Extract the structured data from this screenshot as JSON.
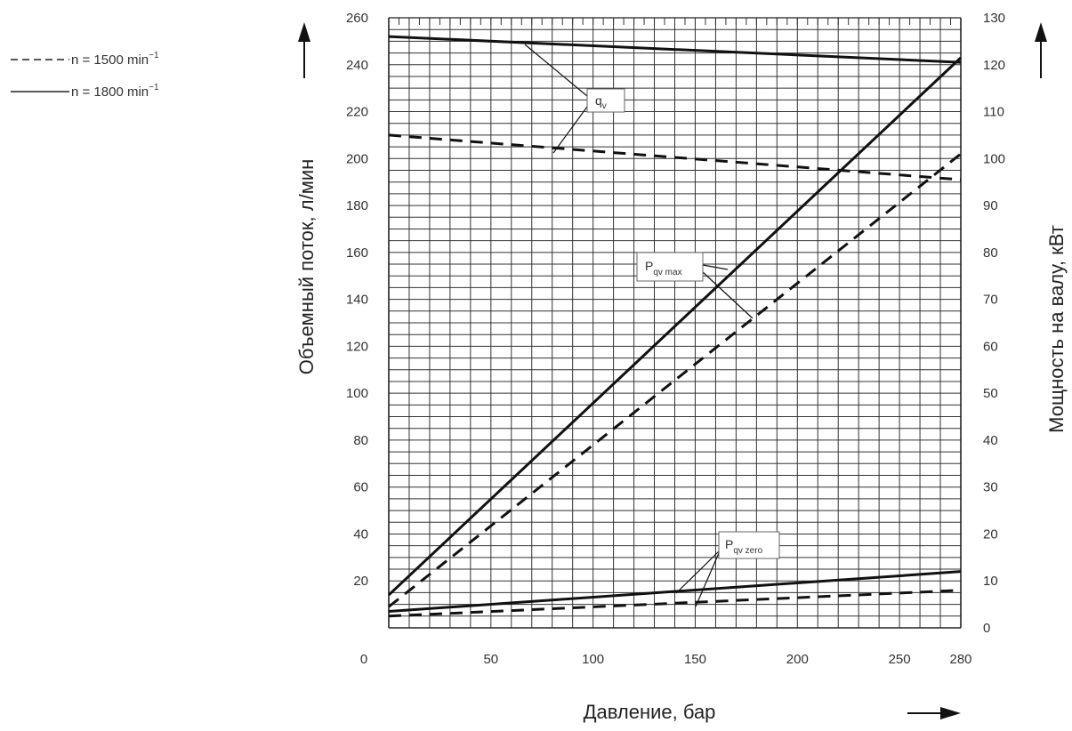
{
  "chart_data": {
    "type": "line",
    "xlabel": "Давление, бар",
    "ylabel_left": "Объемный поток, л/мин",
    "ylabel_right": "Мощность на валу, кВт",
    "xlim": [
      0,
      280
    ],
    "ylim_left": [
      0,
      260
    ],
    "ylim_right": [
      0,
      130
    ],
    "x_ticks": [
      "0",
      "50",
      "100",
      "150",
      "200",
      "250",
      "280"
    ],
    "y_left_ticks": [
      "20",
      "40",
      "60",
      "80",
      "100",
      "120",
      "140",
      "160",
      "180",
      "200",
      "220",
      "240",
      "260"
    ],
    "y_right_ticks": [
      "0",
      "10",
      "20",
      "30",
      "40",
      "50",
      "60",
      "70",
      "80",
      "90",
      "100",
      "110",
      "120",
      "130"
    ],
    "grid": true,
    "legend": [
      {
        "label": "n = 1500 min",
        "sup": "−1",
        "style": "dashed"
      },
      {
        "label": "n = 1800 min",
        "sup": "−1",
        "style": "solid"
      }
    ],
    "annotations": [
      {
        "main": "q",
        "sub": "v"
      },
      {
        "main": "P",
        "sub": "qv max"
      },
      {
        "main": "P",
        "sub": "qv zero"
      }
    ],
    "series": [
      {
        "group": "q_v",
        "speed": 1800,
        "style": "solid",
        "axis": "left",
        "x": [
          0,
          280
        ],
        "y": [
          252,
          241
        ]
      },
      {
        "group": "q_v",
        "speed": 1500,
        "style": "dashed",
        "axis": "left",
        "x": [
          0,
          280
        ],
        "y": [
          210,
          191
        ]
      },
      {
        "group": "P_qv_max",
        "speed": 1800,
        "style": "solid",
        "axis": "right",
        "x": [
          0,
          280
        ],
        "y": [
          7,
          121.5
        ]
      },
      {
        "group": "P_qv_max",
        "speed": 1500,
        "style": "dashed",
        "axis": "right",
        "x": [
          0,
          280
        ],
        "y": [
          4.5,
          101
        ]
      },
      {
        "group": "P_qv_zero",
        "speed": 1800,
        "style": "solid",
        "axis": "right",
        "x": [
          0,
          280
        ],
        "y": [
          3.5,
          12
        ]
      },
      {
        "group": "P_qv_zero",
        "speed": 1500,
        "style": "dashed",
        "axis": "right",
        "x": [
          0,
          280
        ],
        "y": [
          2.5,
          8
        ]
      }
    ]
  }
}
